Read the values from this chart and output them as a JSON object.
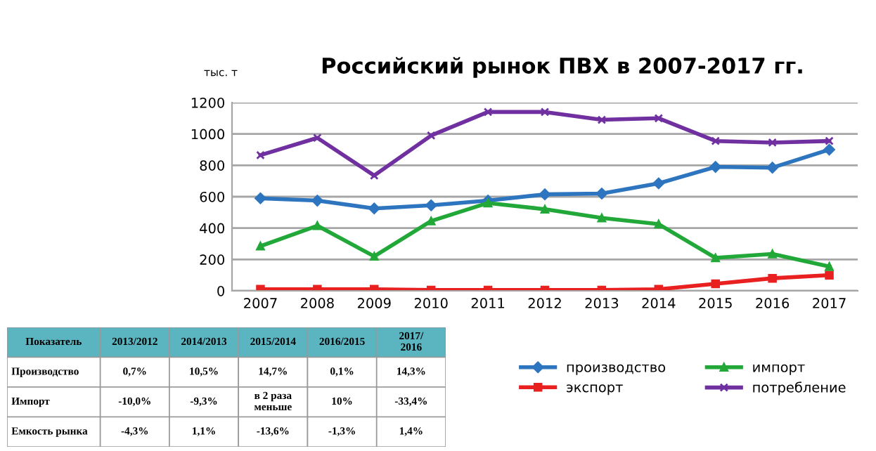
{
  "chart_data": [
    {
      "type": "line",
      "title": "Российский рынок ПВХ в 2007-2017 гг.",
      "ylabel": "тыс. т",
      "categories": [
        "2007",
        "2008",
        "2009",
        "2010",
        "2011",
        "2012",
        "2013",
        "2014",
        "2015",
        "2016",
        "2017"
      ],
      "series": [
        {
          "name": "производство",
          "color": "#2e75c0",
          "marker": "diamond",
          "values": [
            590,
            575,
            525,
            545,
            575,
            615,
            620,
            685,
            790,
            785,
            900
          ]
        },
        {
          "name": "экспорт",
          "color": "#e8201f",
          "marker": "square",
          "values": [
            10,
            10,
            10,
            5,
            5,
            5,
            5,
            10,
            45,
            80,
            100
          ]
        },
        {
          "name": "импорт",
          "color": "#22a838",
          "marker": "triangle",
          "values": [
            285,
            415,
            220,
            445,
            560,
            520,
            465,
            425,
            210,
            235,
            155
          ]
        },
        {
          "name": "потребление",
          "color": "#7030a0",
          "marker": "cross",
          "values": [
            865,
            975,
            735,
            990,
            1140,
            1140,
            1090,
            1100,
            955,
            945,
            955
          ]
        }
      ],
      "ylim": [
        0,
        1200
      ],
      "yticks": [
        0,
        200,
        400,
        600,
        800,
        1000,
        1200
      ],
      "grid": "y",
      "legend": "bottom right",
      "line_style": "solid"
    },
    {
      "type": "other",
      "categories": [
        "Показатель",
        "2013/2012",
        "2014/2013",
        "2015/2014",
        "2016/2015",
        "2017/\n2016"
      ],
      "y_categories": [
        "Производство",
        "Импорт",
        "Емкость рынка"
      ],
      "cell_labels": [
        [
          "0,7%",
          "10,5%",
          "14,7%",
          "0,1%",
          "14,3%"
        ],
        [
          "-10,0%",
          "-9,3%",
          "в 2 раза\nменьше",
          "10%",
          "-33,4%"
        ],
        [
          "-4,3%",
          "1,1%",
          "-13,6%",
          "-1,3%",
          "1,4%"
        ]
      ],
      "color": "#5bb5c0"
    }
  ]
}
